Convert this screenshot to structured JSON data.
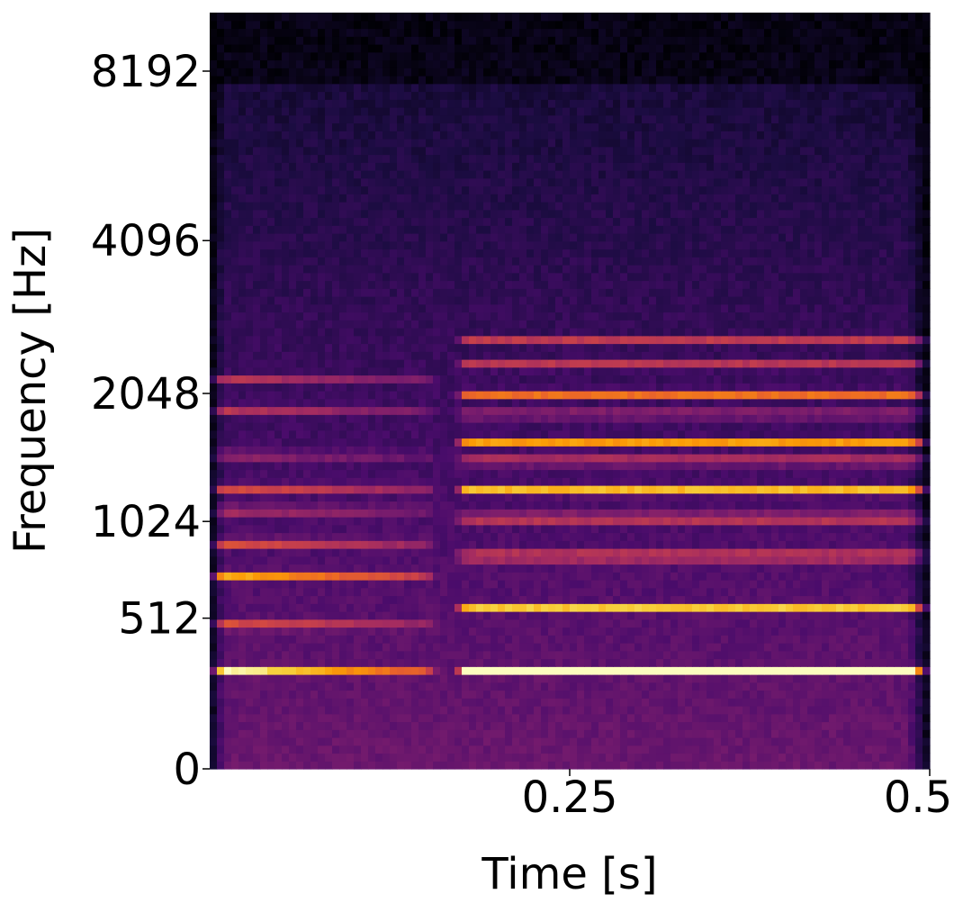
{
  "chart_data": {
    "type": "heatmap",
    "title": "",
    "xlabel": "Time [s]",
    "ylabel": "Frequency [Hz]",
    "xlim": [
      0,
      0.5
    ],
    "x_ticks": [
      {
        "value": 0.25,
        "label": "0.25"
      },
      {
        "value": 0.5,
        "label": "0.5"
      }
    ],
    "y_scale": "mel",
    "y_ticks": [
      {
        "value": 0,
        "label": "0"
      },
      {
        "value": 512,
        "label": "512"
      },
      {
        "value": 1024,
        "label": "1024"
      },
      {
        "value": 2048,
        "label": "2048"
      },
      {
        "value": 4096,
        "label": "4096"
      },
      {
        "value": 8192,
        "label": "8192"
      }
    ],
    "colormap": "magma",
    "colormap_stops": [
      "#000004",
      "#1b0c41",
      "#4a0c6b",
      "#781c6d",
      "#a52c60",
      "#cf4446",
      "#ed6925",
      "#fb9b06",
      "#f7d13d",
      "#fcfdbf"
    ],
    "grid": false,
    "legend": "none",
    "notes_segment_1": {
      "start_s": 0.0,
      "end_s": 0.16
    },
    "notes_segment_2": {
      "start_s": 0.17,
      "end_s": 0.5
    },
    "harmonics_segment_1_hz": [
      300,
      480,
      720,
      900,
      1100,
      1250,
      1500,
      1900,
      2200
    ],
    "harmonics_segment_2_hz": [
      300,
      560,
      820,
      1050,
      1230,
      1450,
      1600,
      1850,
      2050,
      2350,
      2650
    ]
  }
}
